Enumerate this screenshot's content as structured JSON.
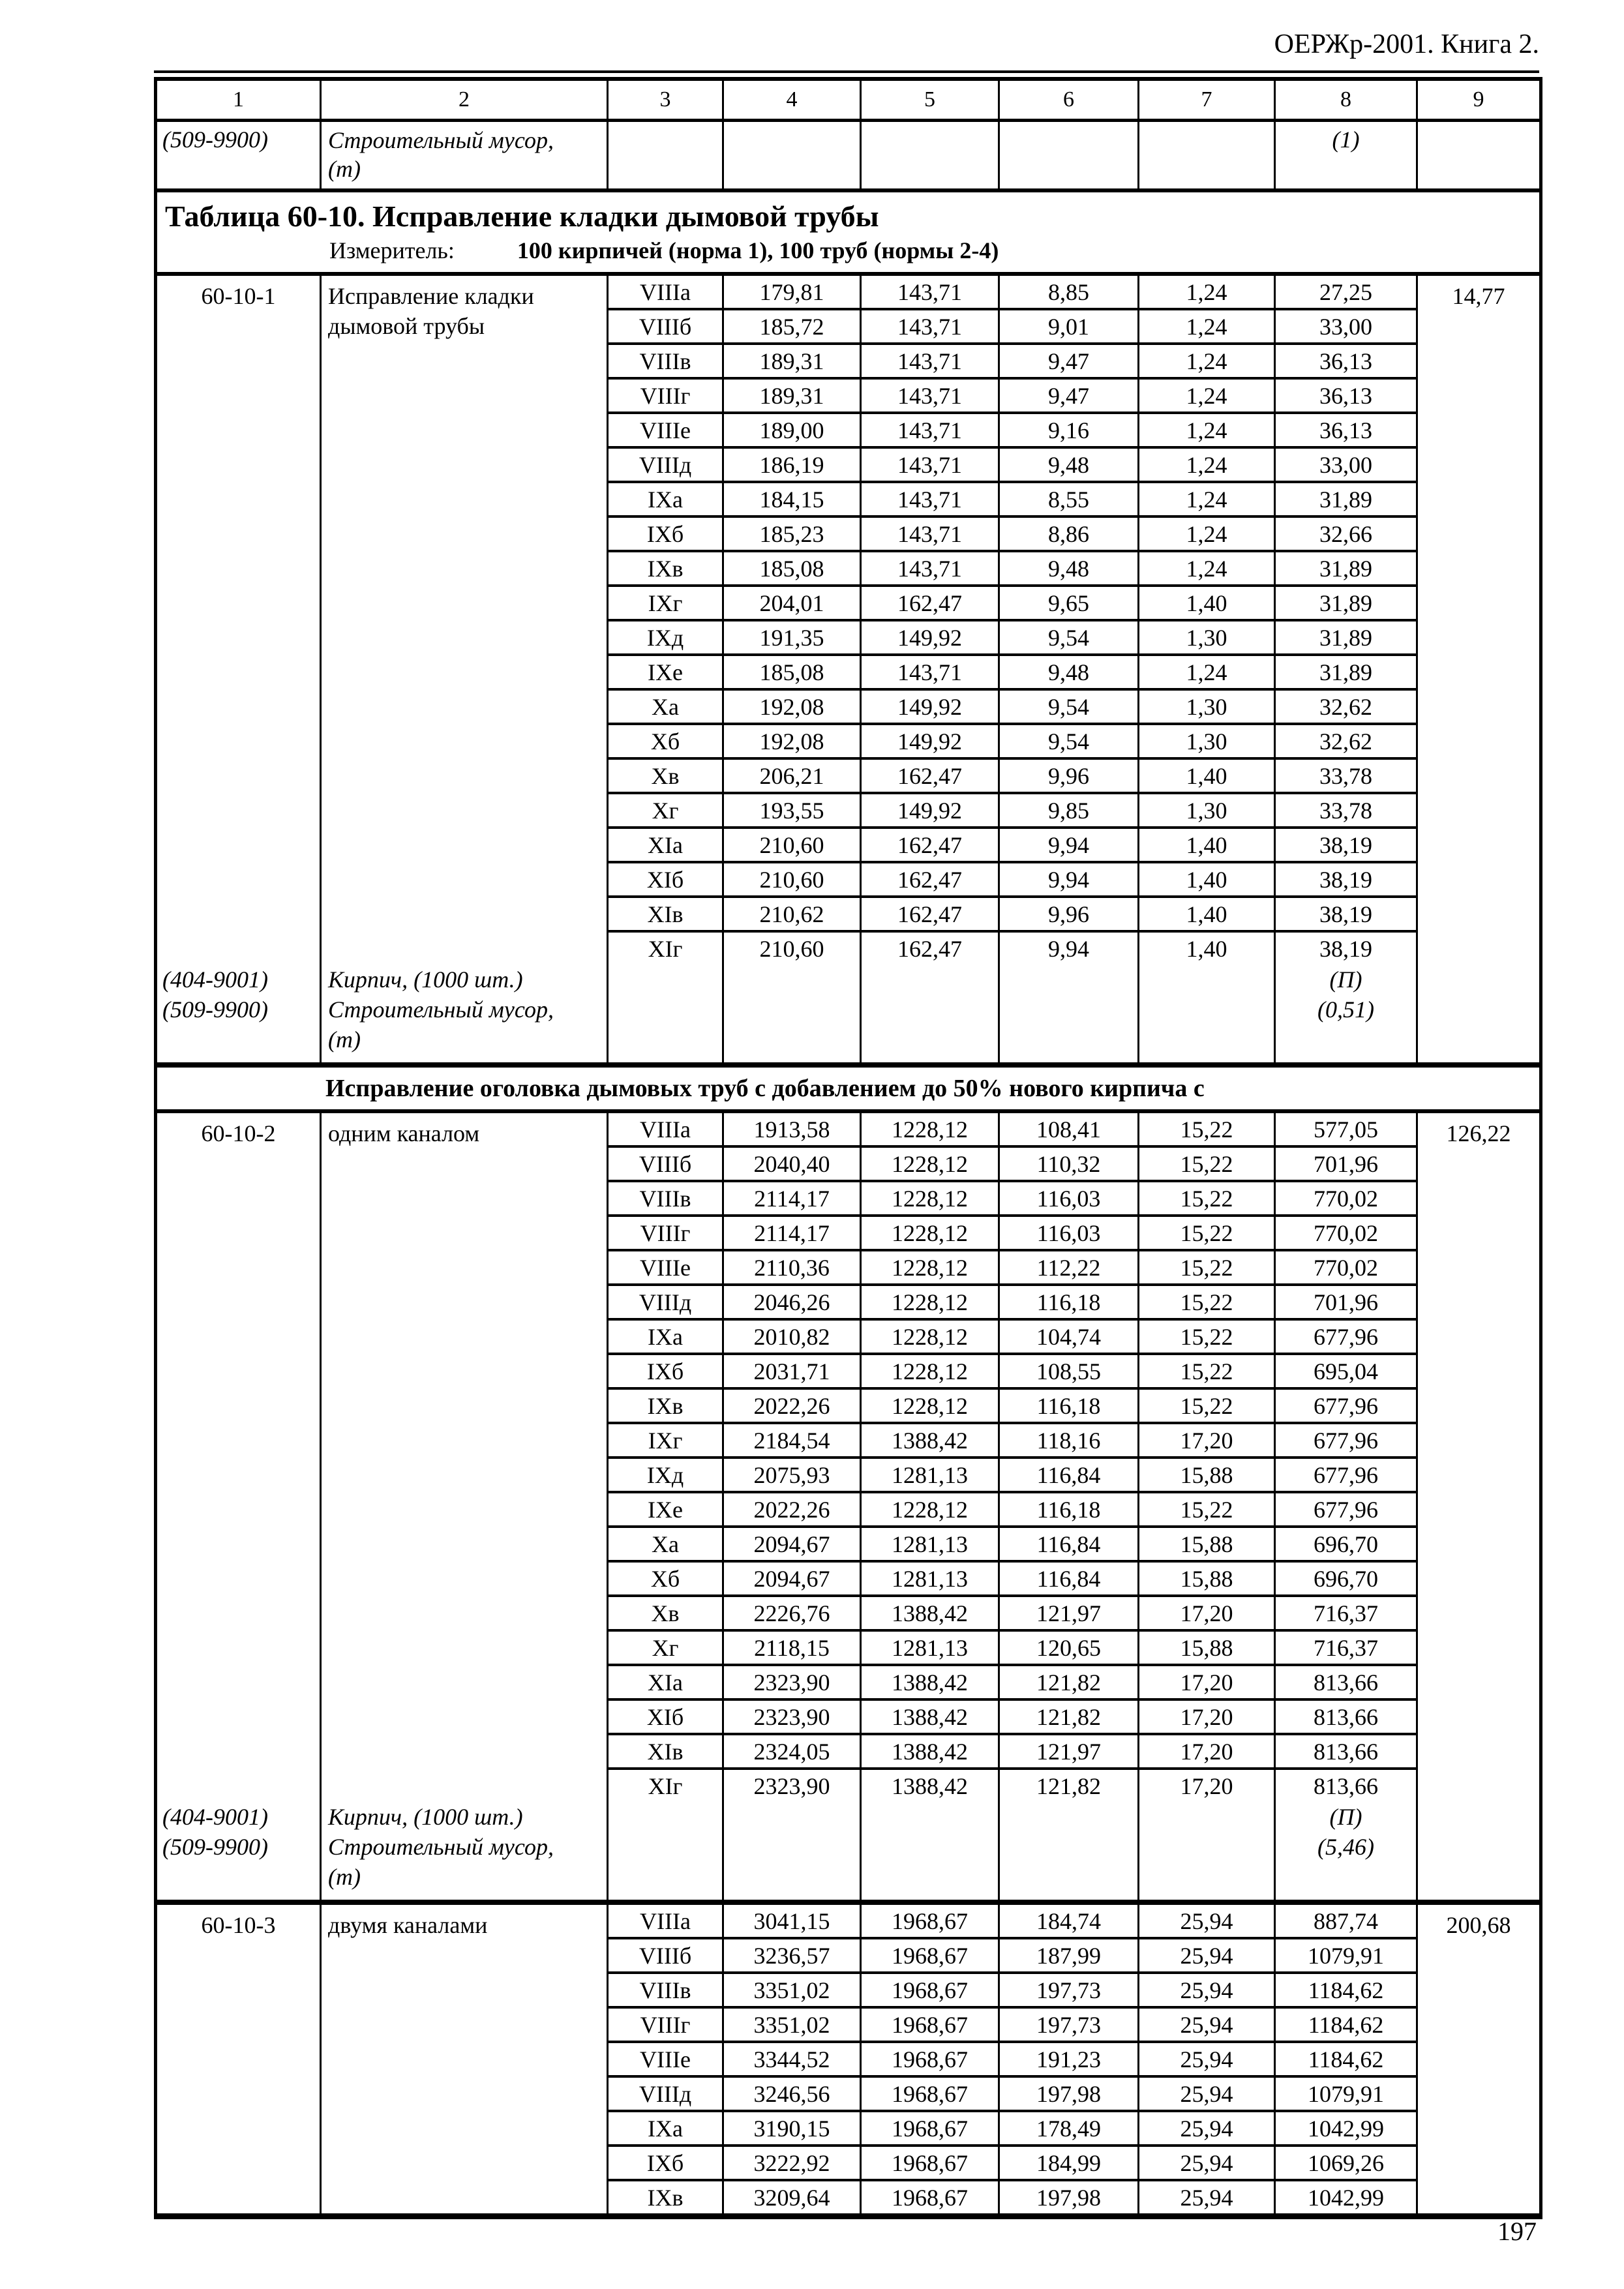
{
  "doc": {
    "header": "ОЕРЖр-2001. Книга 2.",
    "page_number": "197"
  },
  "table": {
    "column_numbers": [
      "1",
      "2",
      "3",
      "4",
      "5",
      "6",
      "7",
      "8",
      "9"
    ],
    "carryover": {
      "code": "(509-9900)",
      "name_lines": [
        "Строительный мусор,",
        "(т)"
      ],
      "col8": "(1)"
    },
    "title_block": {
      "title": "Таблица 60-10. Исправление кладки дымовой трубы",
      "measure_label": "Измеритель:",
      "measure_value": "100 кирпичей (норма 1), 100 труб (нормы 2-4)"
    },
    "sections": [
      {
        "code": "60-10-1",
        "description": "Исправление кладки дымовой трубы",
        "col9": "14,77",
        "rows": [
          [
            "VIIIа",
            "179,81",
            "143,71",
            "8,85",
            "1,24",
            "27,25"
          ],
          [
            "VIIIб",
            "185,72",
            "143,71",
            "9,01",
            "1,24",
            "33,00"
          ],
          [
            "VIIIв",
            "189,31",
            "143,71",
            "9,47",
            "1,24",
            "36,13"
          ],
          [
            "VIIIг",
            "189,31",
            "143,71",
            "9,47",
            "1,24",
            "36,13"
          ],
          [
            "VIIIе",
            "189,00",
            "143,71",
            "9,16",
            "1,24",
            "36,13"
          ],
          [
            "VIIIд",
            "186,19",
            "143,71",
            "9,48",
            "1,24",
            "33,00"
          ],
          [
            "IXа",
            "184,15",
            "143,71",
            "8,55",
            "1,24",
            "31,89"
          ],
          [
            "IXб",
            "185,23",
            "143,71",
            "8,86",
            "1,24",
            "32,66"
          ],
          [
            "IXв",
            "185,08",
            "143,71",
            "9,48",
            "1,24",
            "31,89"
          ],
          [
            "IXг",
            "204,01",
            "162,47",
            "9,65",
            "1,40",
            "31,89"
          ],
          [
            "IXд",
            "191,35",
            "149,92",
            "9,54",
            "1,30",
            "31,89"
          ],
          [
            "IXе",
            "185,08",
            "143,71",
            "9,48",
            "1,24",
            "31,89"
          ],
          [
            "Xа",
            "192,08",
            "149,92",
            "9,54",
            "1,30",
            "32,62"
          ],
          [
            "Xб",
            "192,08",
            "149,92",
            "9,54",
            "1,30",
            "32,62"
          ],
          [
            "Xв",
            "206,21",
            "162,47",
            "9,96",
            "1,40",
            "33,78"
          ],
          [
            "Xг",
            "193,55",
            "149,92",
            "9,85",
            "1,30",
            "33,78"
          ],
          [
            "XIа",
            "210,60",
            "162,47",
            "9,94",
            "1,40",
            "38,19"
          ],
          [
            "XIб",
            "210,60",
            "162,47",
            "9,94",
            "1,40",
            "38,19"
          ],
          [
            "XIв",
            "210,62",
            "162,47",
            "9,96",
            "1,40",
            "38,19"
          ],
          [
            "XIг",
            "210,60",
            "162,47",
            "9,94",
            "1,40",
            "38,19"
          ]
        ],
        "materials": [
          {
            "code": "(404-9001)",
            "lines": [
              "Кирпич, (1000 шт.)"
            ],
            "value": "(П)"
          },
          {
            "code": "(509-9900)",
            "lines": [
              "Строительный мусор,",
              "(т)"
            ],
            "value": "(0,51)"
          }
        ]
      },
      {
        "group_header_before": "Исправление оголовка дымовых труб с добавлением до 50% нового кирпича с",
        "code": "60-10-2",
        "description": "одним каналом",
        "col9": "126,22",
        "rows": [
          [
            "VIIIа",
            "1913,58",
            "1228,12",
            "108,41",
            "15,22",
            "577,05"
          ],
          [
            "VIIIб",
            "2040,40",
            "1228,12",
            "110,32",
            "15,22",
            "701,96"
          ],
          [
            "VIIIв",
            "2114,17",
            "1228,12",
            "116,03",
            "15,22",
            "770,02"
          ],
          [
            "VIIIг",
            "2114,17",
            "1228,12",
            "116,03",
            "15,22",
            "770,02"
          ],
          [
            "VIIIе",
            "2110,36",
            "1228,12",
            "112,22",
            "15,22",
            "770,02"
          ],
          [
            "VIIIд",
            "2046,26",
            "1228,12",
            "116,18",
            "15,22",
            "701,96"
          ],
          [
            "IXа",
            "2010,82",
            "1228,12",
            "104,74",
            "15,22",
            "677,96"
          ],
          [
            "IXб",
            "2031,71",
            "1228,12",
            "108,55",
            "15,22",
            "695,04"
          ],
          [
            "IXв",
            "2022,26",
            "1228,12",
            "116,18",
            "15,22",
            "677,96"
          ],
          [
            "IXг",
            "2184,54",
            "1388,42",
            "118,16",
            "17,20",
            "677,96"
          ],
          [
            "IXд",
            "2075,93",
            "1281,13",
            "116,84",
            "15,88",
            "677,96"
          ],
          [
            "IXе",
            "2022,26",
            "1228,12",
            "116,18",
            "15,22",
            "677,96"
          ],
          [
            "Xа",
            "2094,67",
            "1281,13",
            "116,84",
            "15,88",
            "696,70"
          ],
          [
            "Xб",
            "2094,67",
            "1281,13",
            "116,84",
            "15,88",
            "696,70"
          ],
          [
            "Xв",
            "2226,76",
            "1388,42",
            "121,97",
            "17,20",
            "716,37"
          ],
          [
            "Xг",
            "2118,15",
            "1281,13",
            "120,65",
            "15,88",
            "716,37"
          ],
          [
            "XIа",
            "2323,90",
            "1388,42",
            "121,82",
            "17,20",
            "813,66"
          ],
          [
            "XIб",
            "2323,90",
            "1388,42",
            "121,82",
            "17,20",
            "813,66"
          ],
          [
            "XIв",
            "2324,05",
            "1388,42",
            "121,97",
            "17,20",
            "813,66"
          ],
          [
            "XIг",
            "2323,90",
            "1388,42",
            "121,82",
            "17,20",
            "813,66"
          ]
        ],
        "materials": [
          {
            "code": "(404-9001)",
            "lines": [
              "Кирпич, (1000 шт.)"
            ],
            "value": "(П)"
          },
          {
            "code": "(509-9900)",
            "lines": [
              "Строительный мусор,",
              "(т)"
            ],
            "value": "(5,46)"
          }
        ]
      },
      {
        "code": "60-10-3",
        "description": "двумя каналами",
        "col9": "200,68",
        "rows": [
          [
            "VIIIа",
            "3041,15",
            "1968,67",
            "184,74",
            "25,94",
            "887,74"
          ],
          [
            "VIIIб",
            "3236,57",
            "1968,67",
            "187,99",
            "25,94",
            "1079,91"
          ],
          [
            "VIIIв",
            "3351,02",
            "1968,67",
            "197,73",
            "25,94",
            "1184,62"
          ],
          [
            "VIIIг",
            "3351,02",
            "1968,67",
            "197,73",
            "25,94",
            "1184,62"
          ],
          [
            "VIIIе",
            "3344,52",
            "1968,67",
            "191,23",
            "25,94",
            "1184,62"
          ],
          [
            "VIIIд",
            "3246,56",
            "1968,67",
            "197,98",
            "25,94",
            "1079,91"
          ],
          [
            "IXа",
            "3190,15",
            "1968,67",
            "178,49",
            "25,94",
            "1042,99"
          ],
          [
            "IXб",
            "3222,92",
            "1968,67",
            "184,99",
            "25,94",
            "1069,26"
          ],
          [
            "IXв",
            "3209,64",
            "1968,67",
            "197,98",
            "25,94",
            "1042,99"
          ]
        ]
      }
    ]
  }
}
